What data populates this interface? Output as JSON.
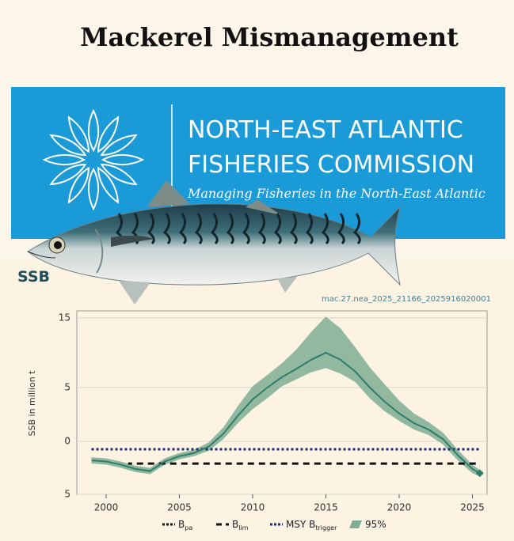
{
  "page_title": "Mackerel Mismanagement",
  "banner": {
    "line1": "NORTH-EAST ATLANTIC",
    "line2": "FISHERIES COMMISSION",
    "tagline": "Managing Fisheries in the North-East Atlantic"
  },
  "chart_data": {
    "type": "line",
    "title": "SSB",
    "code": "mac.27.nea_2025_21166_2025916020001",
    "y_label": "SSB in million t",
    "x": [
      1999,
      2000,
      2001,
      2002,
      2003,
      2004,
      2005,
      2006,
      2007,
      2008,
      2009,
      2010,
      2011,
      2012,
      2013,
      2014,
      2015,
      2016,
      2017,
      2018,
      2019,
      2020,
      2021,
      2022,
      2023,
      2024,
      2025,
      2025.5
    ],
    "series": [
      {
        "name": "SSB",
        "color": "#2e7d6a",
        "values": [
          -1.8,
          -1.9,
          -2.2,
          -2.6,
          -2.8,
          -1.9,
          -1.4,
          -1.1,
          -0.5,
          0.7,
          2.4,
          3.9,
          5,
          6.5,
          7.7,
          9,
          10,
          9,
          7.3,
          5,
          3.7,
          2.6,
          1.7,
          1.1,
          0.2,
          -1.3,
          -2.6,
          -3
        ]
      }
    ],
    "band": {
      "name": "95%",
      "color": "#7fae94",
      "upper": [
        -1.5,
        -1.6,
        -1.9,
        -2.3,
        -2.5,
        -1.6,
        -1.1,
        -0.8,
        -0.1,
        1.3,
        3.3,
        5.2,
        6.8,
        8.5,
        10.5,
        13,
        15.2,
        13.5,
        10.8,
        7.9,
        5.5,
        3.8,
        2.6,
        1.8,
        0.8,
        -0.8,
        -2.2,
        -2.7
      ],
      "lower": [
        -2.1,
        -2.2,
        -2.5,
        -2.9,
        -3.1,
        -2.2,
        -1.7,
        -1.4,
        -0.9,
        0.2,
        1.7,
        3.0,
        4.0,
        5.2,
        6.2,
        7.2,
        7.8,
        7.0,
        5.8,
        4.0,
        2.8,
        1.9,
        1.1,
        0.6,
        -0.3,
        -1.8,
        -3.0,
        -3.3
      ]
    },
    "reference_lines": [
      {
        "name": "B",
        "sub": "pa",
        "value": -0.75,
        "from": 1999,
        "to": 2025.5,
        "color": "#111111",
        "style": "dotted"
      },
      {
        "name": "B",
        "sub": "lim",
        "value": -2.1,
        "from": 2001.5,
        "to": 2025.5,
        "color": "#111111",
        "style": "dashed"
      },
      {
        "name": "MSY B",
        "sub": "trigger",
        "value": -0.75,
        "from": 1999,
        "to": 2025.5,
        "color": "#1a2a6c",
        "style": "dotted"
      }
    ],
    "xlim": [
      1998,
      2026
    ],
    "xticks": [
      2000,
      2005,
      2010,
      2015,
      2020,
      2025
    ],
    "ylim": [
      -5,
      15
    ],
    "yticks": [
      {
        "value": -5,
        "label": "5"
      },
      0,
      5,
      15
    ],
    "grid": true
  }
}
